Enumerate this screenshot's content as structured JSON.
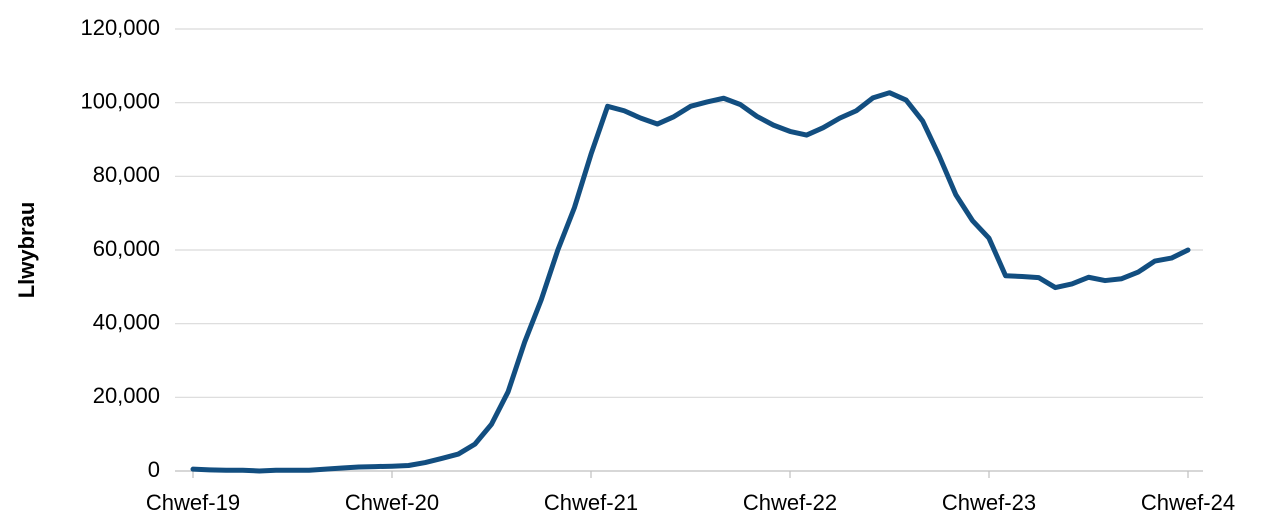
{
  "chart_data": {
    "type": "line",
    "y_label": "Llwybrau",
    "categories": [
      "Chwef-19",
      null,
      null,
      null,
      null,
      null,
      null,
      null,
      null,
      null,
      null,
      null,
      "Chwef-20",
      null,
      null,
      null,
      null,
      null,
      null,
      null,
      null,
      null,
      null,
      null,
      "Chwef-21",
      null,
      null,
      null,
      null,
      null,
      null,
      null,
      null,
      null,
      null,
      null,
      "Chwef-22",
      null,
      null,
      null,
      null,
      null,
      null,
      null,
      null,
      null,
      null,
      null,
      "Chwef-23",
      null,
      null,
      null,
      null,
      null,
      null,
      null,
      null,
      null,
      null,
      null,
      "Chwef-24"
    ],
    "values": [
      500,
      300,
      200,
      200,
      0,
      200,
      200,
      200,
      500,
      800,
      1100,
      1200,
      1300,
      1500,
      2300,
      3400,
      4600,
      7300,
      12700,
      21500,
      35000,
      46500,
      60000,
      71500,
      86000,
      99000,
      97800,
      95800,
      94200,
      96200,
      99000,
      100200,
      101200,
      99500,
      96300,
      93900,
      92200,
      91200,
      93200,
      95800,
      97800,
      101300,
      102700,
      100700,
      95000,
      85500,
      75000,
      68000,
      63200,
      53000,
      52800,
      52500,
      49800,
      50800,
      52600,
      51700,
      52200,
      54000,
      57000,
      57800,
      60000
    ],
    "color": "#124e80",
    "ylim": [
      0,
      120000
    ],
    "yticks": [
      0,
      {
        "value": 20000,
        "label": "20,000"
      },
      {
        "value": 40000,
        "label": "40,000"
      },
      {
        "value": 60000,
        "label": "60,000"
      },
      {
        "value": 80000,
        "label": "80,000"
      },
      {
        "value": 100000,
        "label": "100,000"
      },
      {
        "value": 120000,
        "label": "120,000"
      }
    ],
    "grid": true
  }
}
